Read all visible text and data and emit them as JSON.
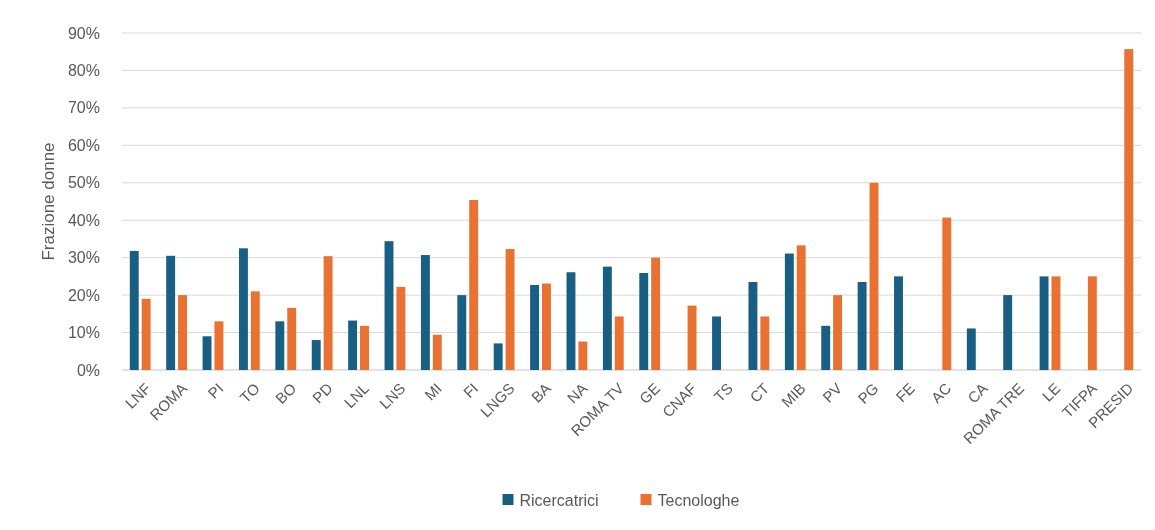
{
  "chart_data": {
    "type": "bar",
    "ylabel": "Frazione donne",
    "categories": [
      "LNF",
      "ROMA",
      "PI",
      "TO",
      "BO",
      "PD",
      "LNL",
      "LNS",
      "MI",
      "FI",
      "LNGS",
      "BA",
      "NA",
      "ROMA TV",
      "GE",
      "CNAF",
      "TS",
      "CT",
      "MIB",
      "PV",
      "PG",
      "FE",
      "AC",
      "CA",
      "ROMA TRE",
      "LE",
      "TIFPA",
      "PRESID"
    ],
    "series": [
      {
        "name": "Ricercatrici",
        "color": "#195e83",
        "values": [
          31.8,
          30.5,
          9,
          32.5,
          13,
          8,
          13.2,
          34.4,
          30.7,
          20,
          7.1,
          22.7,
          26.1,
          27.6,
          25.9,
          null,
          14.3,
          23.5,
          31.1,
          11.8,
          23.5,
          25,
          null,
          11.1,
          20,
          25,
          null,
          null
        ]
      },
      {
        "name": "Tecnologhe",
        "color": "#e97132",
        "values": [
          19,
          20,
          13,
          21,
          16.6,
          30.4,
          11.8,
          22.2,
          9.4,
          45.4,
          32.3,
          23.1,
          7.6,
          14.3,
          30,
          17.2,
          null,
          14.3,
          33.3,
          20,
          50,
          null,
          40.7,
          null,
          null,
          25,
          25,
          85.7
        ]
      }
    ],
    "ylim": [
      0,
      90
    ],
    "yticks": [
      {
        "value": 0,
        "label": "0%"
      },
      {
        "value": 10,
        "label": "10%"
      },
      {
        "value": 20,
        "label": "20%"
      },
      {
        "value": 30,
        "label": "30%"
      },
      {
        "value": 40,
        "label": "40%"
      },
      {
        "value": 50,
        "label": "50%"
      },
      {
        "value": 60,
        "label": "60%"
      },
      {
        "value": 70,
        "label": "70%"
      },
      {
        "value": 80,
        "label": "80%"
      },
      {
        "value": 90,
        "label": "90%"
      }
    ],
    "grid": "y",
    "legend": "bottom"
  }
}
